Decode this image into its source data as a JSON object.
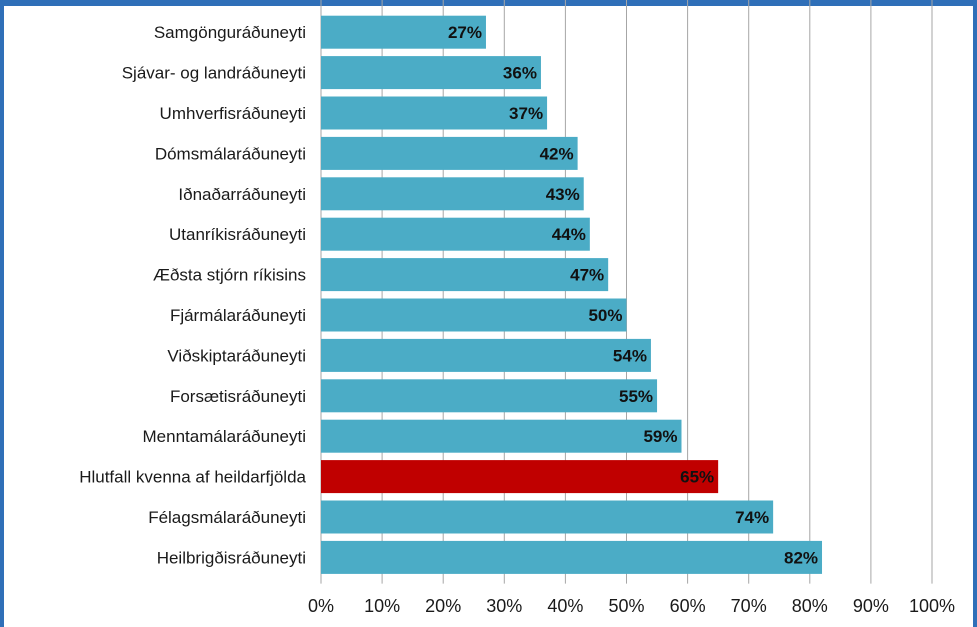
{
  "chart_data": {
    "type": "bar",
    "orientation": "horizontal",
    "categories": [
      "Samgönguráðuneyti",
      "Sjávar- og landráðuneyti",
      "Umhverfisráðuneyti",
      "Dómsmálaráðuneyti",
      "Iðnaðarráðuneyti",
      "Utanríkisráðuneyti",
      "Æðsta stjórn ríkisins",
      "Fjármálaráðuneyti",
      "Viðskiptaráðuneyti",
      "Forsætisráðuneyti",
      "Menntamálaráðuneyti",
      "Hlutfall kvenna af heildarfjölda",
      "Félagsmálaráðuneyti",
      "Heilbrigðisráðuneyti"
    ],
    "values": [
      27,
      36,
      37,
      42,
      43,
      44,
      47,
      50,
      54,
      55,
      59,
      65,
      74,
      82
    ],
    "value_labels": [
      "27%",
      "36%",
      "37%",
      "42%",
      "43%",
      "44%",
      "47%",
      "50%",
      "54%",
      "55%",
      "59%",
      "65%",
      "74%",
      "82%"
    ],
    "highlight_index": 11,
    "colors": {
      "bar": "#4bacc6",
      "highlight": "#c00000",
      "grid": "#a6a6a6",
      "frame": "#2f6fb8"
    },
    "xlim": [
      0,
      100
    ],
    "xticks": [
      "0%",
      "10%",
      "20%",
      "30%",
      "40%",
      "50%",
      "60%",
      "70%",
      "80%",
      "90%",
      "100%"
    ],
    "grid": true,
    "legend": "none"
  }
}
